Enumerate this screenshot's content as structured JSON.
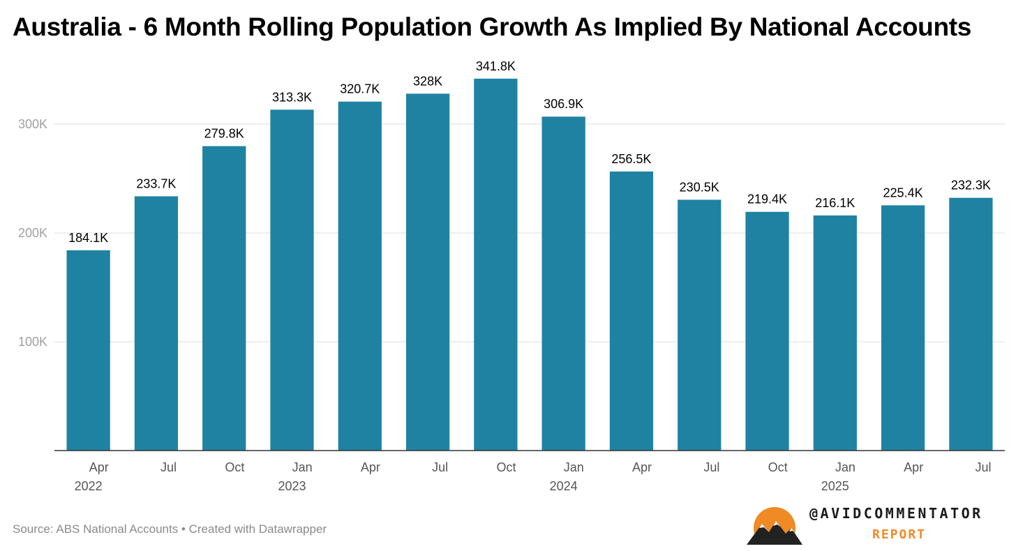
{
  "title": "Australia - 6 Month Rolling Population Growth As Implied By National Accounts",
  "source": "Source: ABS National Accounts • Created with Datawrapper",
  "brand": {
    "name": "@AVIDCOMMENTATOR",
    "sub": "REPORT"
  },
  "colors": {
    "bar": "#1f82a2",
    "grid": "#dddddd",
    "axis": "#333333",
    "tick": "#a0a0a0",
    "accent": "#f08a24"
  },
  "chart_data": {
    "type": "bar",
    "title": "Australia - 6 Month Rolling Population Growth As Implied By National Accounts",
    "xlabel": "",
    "ylabel": "",
    "ylim": [
      0,
      350000
    ],
    "yticks": [
      100000,
      200000,
      300000
    ],
    "ytick_labels": [
      "100K",
      "200K",
      "300K"
    ],
    "grid": true,
    "categories": [
      "Apr 2022",
      "Jul 2022",
      "Oct 2022",
      "Jan 2023",
      "Apr 2023",
      "Jul 2023",
      "Oct 2023",
      "Jan 2024",
      "Apr 2024",
      "Jul 2024",
      "Oct 2024",
      "Jan 2025",
      "Apr 2025",
      "Jul 2025"
    ],
    "month_labels": [
      "Apr",
      "Jul",
      "Oct",
      "Jan",
      "Apr",
      "Jul",
      "Oct",
      "Jan",
      "Apr",
      "Jul",
      "Oct",
      "Jan",
      "Apr",
      "Jul"
    ],
    "year_labels": [
      "2022",
      "",
      "",
      "2023",
      "",
      "",
      "",
      "2024",
      "",
      "",
      "",
      "2025",
      "",
      ""
    ],
    "values": [
      184100,
      233700,
      279800,
      313300,
      320700,
      328000,
      341800,
      306900,
      256500,
      230500,
      219400,
      216100,
      225400,
      232300
    ],
    "value_labels": [
      "184.1K",
      "233.7K",
      "279.8K",
      "313.3K",
      "320.7K",
      "328K",
      "341.8K",
      "306.9K",
      "256.5K",
      "230.5K",
      "219.4K",
      "216.1K",
      "225.4K",
      "232.3K"
    ]
  }
}
